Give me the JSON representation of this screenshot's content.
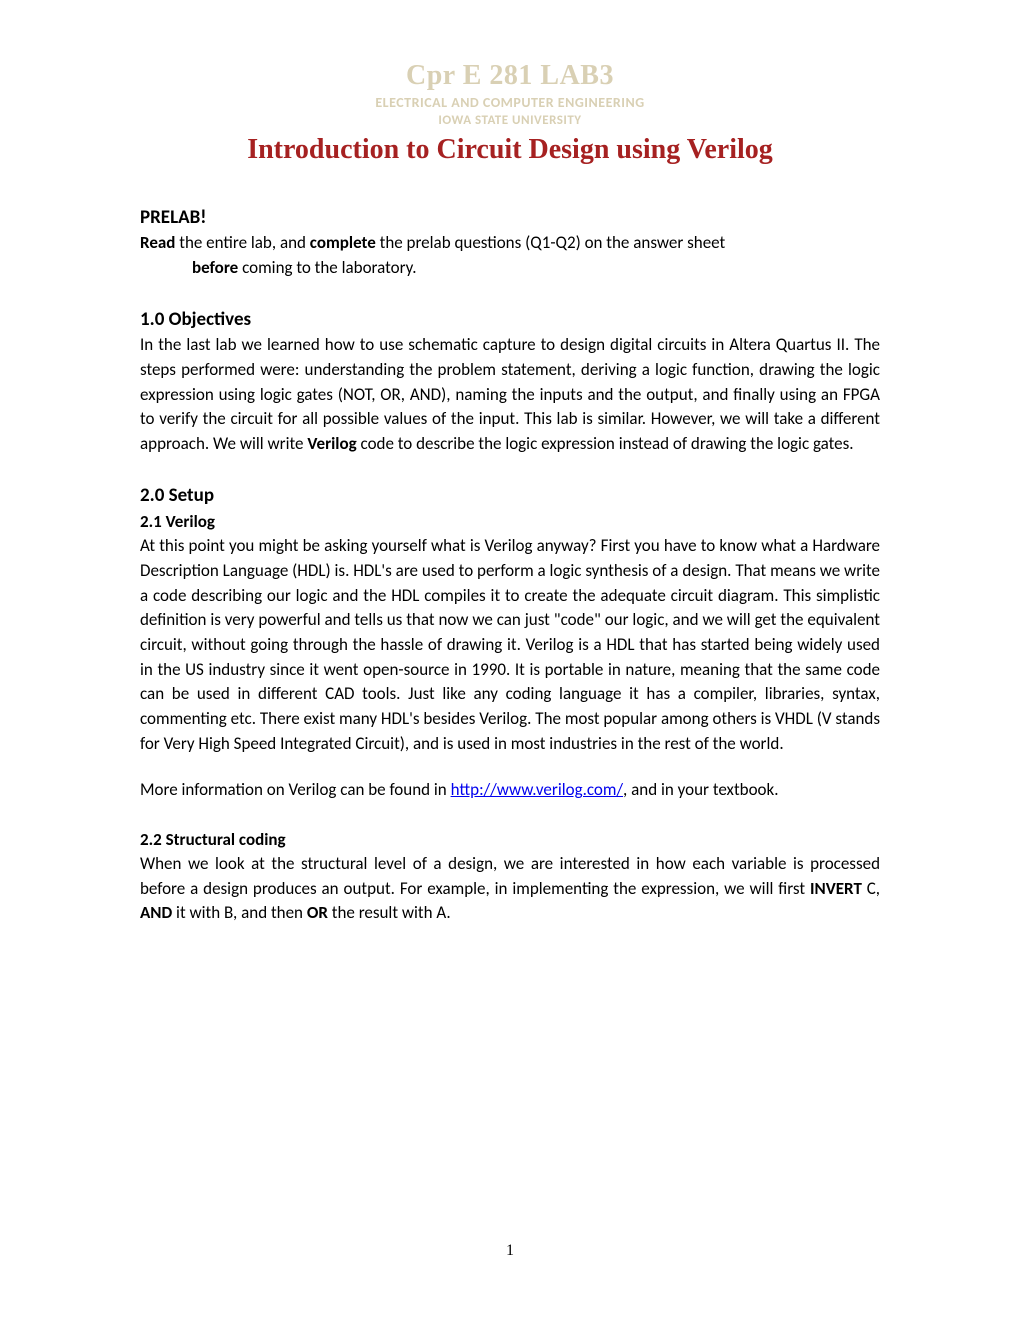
{
  "header": {
    "course_code": "Cpr E 281 LAB3",
    "department": "ELECTRICAL AND COMPUTER ENGINEERING",
    "university": "IOWA STATE UNIVERSITY",
    "title": "Introduction to Circuit Design using Verilog"
  },
  "prelab": {
    "heading": "PRELAB!",
    "read_label": "Read",
    "line1_rest": " the entire lab, and ",
    "complete_label": "complete",
    "line1_end": " the prelab questions (Q1-Q2) on the answer sheet",
    "before_label": "before",
    "line2_end": " coming to the laboratory."
  },
  "objectives": {
    "heading": "1.0 Objectives",
    "p1_a": "In the last lab we learned how to use schematic capture to design digital circuits in Altera Quartus II.  The steps performed were: understanding the problem statement, deriving a logic function, drawing the logic expression using logic gates (NOT, OR, AND), naming the inputs and the output, and finally using an FPGA to verify the circuit for all possible values of the input.  This lab is similar.  However, we will take a different approach.  We will write ",
    "verilog_label": "Verilog",
    "p1_b": " code to describe the logic expression instead of drawing the logic gates."
  },
  "setup": {
    "heading": "2.0 Setup",
    "sub1": "2.1 Verilog",
    "p1": "At this point you might be asking yourself what is Verilog anyway? First you have to know what a Hardware Description Language (HDL) is.  HDL's are used to perform a logic synthesis of a design.  That means we write a code describing our logic and the HDL compiles it to create the adequate circuit diagram.  This simplistic definition is very powerful and tells us that now we can just \"code\" our logic, and we will get the equivalent circuit, without going through the hassle of drawing it.  Verilog is a HDL that has started being widely used in the US industry since it went open-source in 1990.  It is portable in nature, meaning that the same code can be used in different CAD tools.  Just like any coding language it has a compiler, libraries, syntax, commenting etc.  There exist many HDL's besides Verilog. The most popular among others is VHDL (V stands for Very High Speed Integrated Circuit), and is used in most industries in the rest of the world.",
    "p2_a": "More information on Verilog can be found in ",
    "link_text": "http://www.verilog.com/",
    "p2_b": ", and in your textbook.",
    "sub2": "2.2 Structural coding",
    "p3_a": "When we look at the structural level of a design, we are interested in how each variable is processed before a design produces an output.  For example, in implementing the expression, we will first ",
    "invert_label": "INVERT",
    "p3_b": " C, ",
    "and_label": "AND",
    "p3_c": " it with B, and then ",
    "or_label": "OR",
    "p3_d": " the result with A."
  },
  "page_number": "1",
  "colors": {
    "watermark": "#d9d0b4",
    "title": "#a62121",
    "link": "#0000ee",
    "text": "#000000",
    "background": "#ffffff"
  },
  "typography": {
    "body_font": "Calibri",
    "title_font": "Times New Roman",
    "body_size_pt": 12,
    "title_size_pt": 20,
    "heading_size_pt": 14
  }
}
